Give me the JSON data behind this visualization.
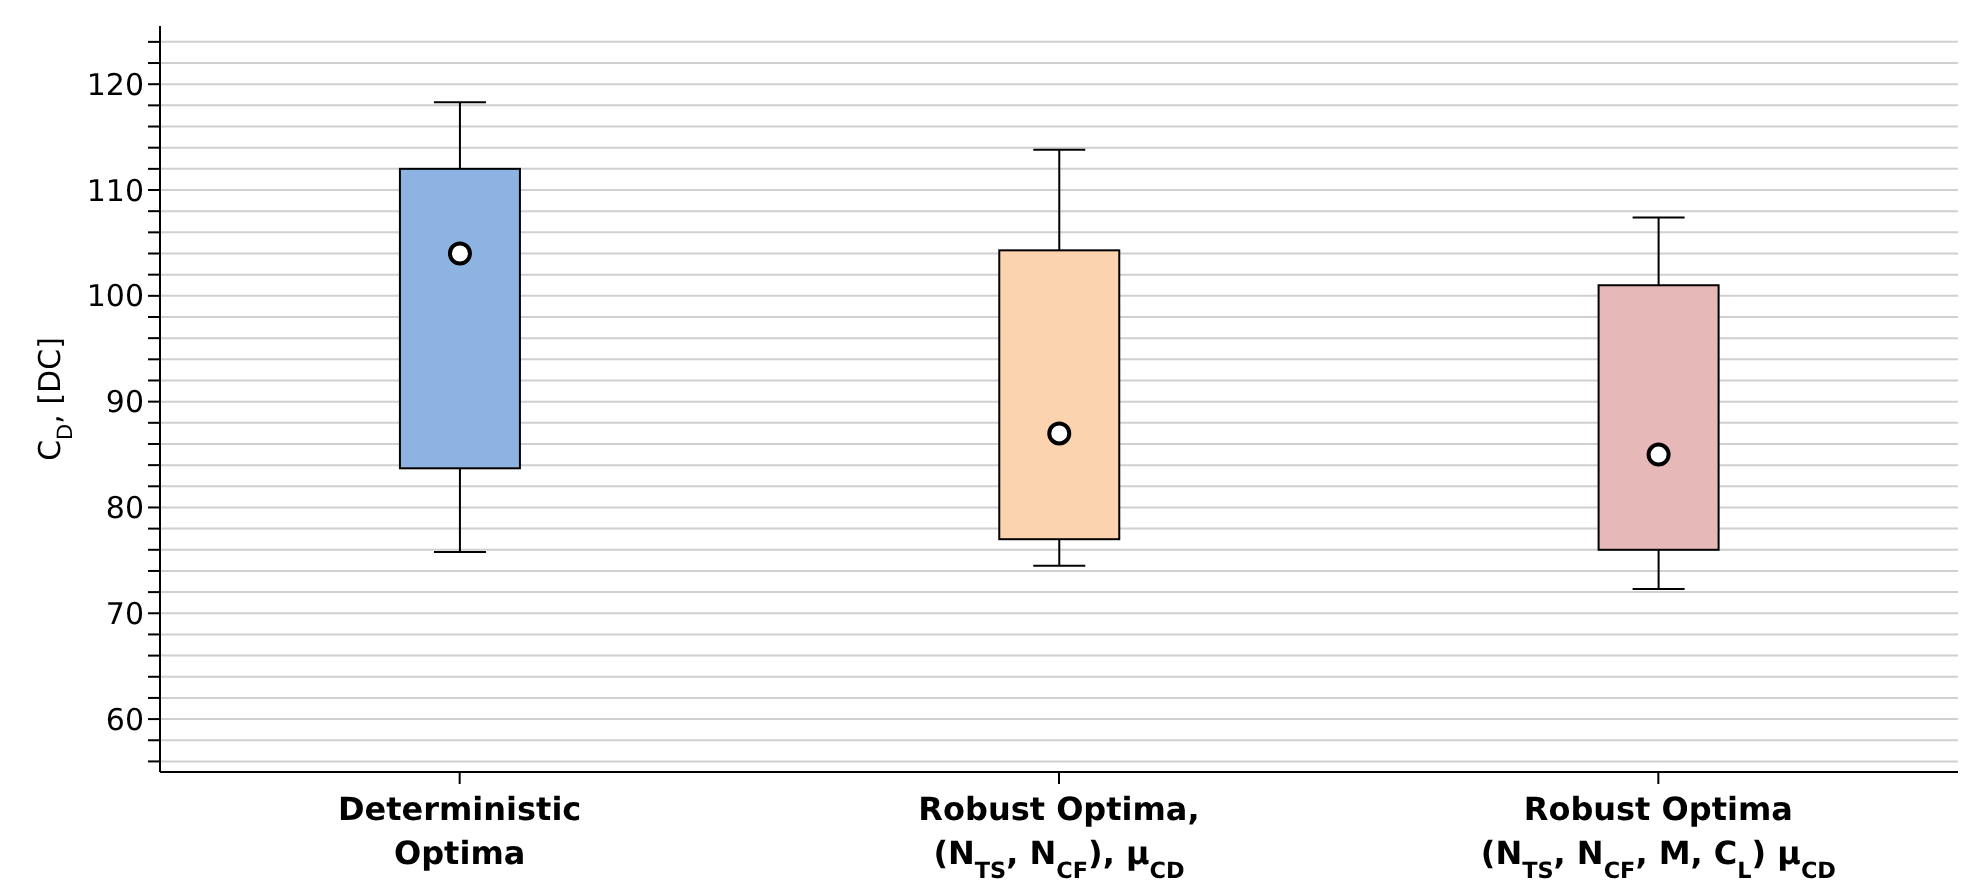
{
  "chart_data": {
    "type": "box",
    "ylabel": "C$_{D}$, [DC]",
    "categories": [
      "Deterministic Optima",
      "Robust Optima, (N$_{TS}$, N$_{CF}$), μ$_{CD}$",
      "Robust Optima (N$_{TS}$, N$_{CF}$, M, C$_{L}$) μ$_{CD}$"
    ],
    "colors": [
      "#8db3e2",
      "#fbd3ae",
      "#e6b8b7"
    ],
    "boxes": [
      {
        "low": 75.8,
        "q1": 83.7,
        "median": 104,
        "q3": 112,
        "high": 118.3
      },
      {
        "low": 74.5,
        "q1": 77,
        "median": 87,
        "q3": 104.3,
        "high": 113.8
      },
      {
        "low": 72.3,
        "q1": 76,
        "median": 85,
        "q3": 101,
        "high": 107.4
      }
    ],
    "ylim": [
      55,
      125.5
    ],
    "yticks": [
      {
        "value": 56,
        "label": null
      },
      {
        "value": 58,
        "label": null
      },
      60,
      {
        "value": 62,
        "label": null
      },
      {
        "value": 64,
        "label": null
      },
      {
        "value": 66,
        "label": null
      },
      {
        "value": 68,
        "label": null
      },
      70,
      {
        "value": 72,
        "label": null
      },
      {
        "value": 74,
        "label": null
      },
      {
        "value": 76,
        "label": null
      },
      {
        "value": 78,
        "label": null
      },
      80,
      {
        "value": 82,
        "label": null
      },
      {
        "value": 84,
        "label": null
      },
      {
        "value": 86,
        "label": null
      },
      {
        "value": 88,
        "label": null
      },
      90,
      {
        "value": 92,
        "label": null
      },
      {
        "value": 94,
        "label": null
      },
      {
        "value": 96,
        "label": null
      },
      {
        "value": 98,
        "label": null
      },
      100,
      {
        "value": 102,
        "label": null
      },
      {
        "value": 104,
        "label": null
      },
      {
        "value": 106,
        "label": null
      },
      {
        "value": 108,
        "label": null
      },
      110,
      {
        "value": 112,
        "label": null
      },
      {
        "value": 114,
        "label": null
      },
      {
        "value": 116,
        "label": null
      },
      {
        "value": 118,
        "label": null
      },
      120,
      {
        "value": 122,
        "label": null
      },
      {
        "value": 124,
        "label": null
      }
    ],
    "grid": "y"
  }
}
